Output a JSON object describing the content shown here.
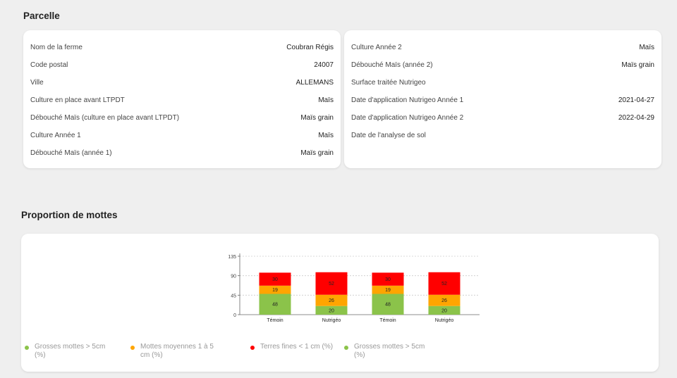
{
  "parcelle": {
    "title": "Parcelle",
    "left_rows": [
      {
        "label": "Nom de la ferme",
        "value": "Coubran Régis"
      },
      {
        "label": "Code postal",
        "value": "24007"
      },
      {
        "label": "Ville",
        "value": "ALLEMANS"
      },
      {
        "label": "Culture en place avant LTPDT",
        "value": "Maïs"
      },
      {
        "label": "Débouché Maïs (culture en place avant LTPDT)",
        "value": "Maïs grain"
      },
      {
        "label": "Culture Année 1",
        "value": "Maïs"
      },
      {
        "label": "Débouché Maïs (année 1)",
        "value": "Maïs grain"
      }
    ],
    "right_rows": [
      {
        "label": "Culture Année 2",
        "value": "Maïs"
      },
      {
        "label": "Débouché Maïs (année 2)",
        "value": "Maïs grain"
      },
      {
        "label": "Surface traitée Nutrigeo",
        "value": ""
      },
      {
        "label": "Date d'application Nutrigeo Année 1",
        "value": "2021-04-27"
      },
      {
        "label": "Date d'application Nutrigeo Année 2",
        "value": "2022-04-29"
      },
      {
        "label": "Date de l'analyse de sol",
        "value": ""
      }
    ]
  },
  "mottes": {
    "title": "Proportion de mottes"
  },
  "chart_data": {
    "type": "bar",
    "stacked": true,
    "categories": [
      "Témoin",
      "Nutrigéo",
      "Témoin",
      "Nutrigéo"
    ],
    "yticks": [
      0,
      45,
      90,
      135
    ],
    "ylim": [
      0,
      135
    ],
    "grid": true,
    "legend_position": "bottom",
    "series": [
      {
        "name": "Grosses mottes > 5cm (%)",
        "color": "#8bc34a",
        "values": [
          48,
          20,
          48,
          20
        ]
      },
      {
        "name": "Mottes moyennes 1 à 5 cm (%)",
        "color": "#ffa500",
        "values": [
          19,
          26,
          19,
          26
        ]
      },
      {
        "name": "Terres fines < 1 cm (%)",
        "color": "#ff0000",
        "values": [
          30,
          52,
          30,
          52
        ]
      }
    ],
    "legend": [
      {
        "label": "Grosses mottes > 5cm (%)",
        "color": "#8bc34a"
      },
      {
        "label": "Mottes moyennes 1 à 5 cm (%)",
        "color": "#ffa500"
      },
      {
        "label": "Terres fines < 1 cm (%)",
        "color": "#ff0000"
      },
      {
        "label": "Grosses mottes > 5cm (%)",
        "color": "#8bc34a"
      }
    ]
  }
}
